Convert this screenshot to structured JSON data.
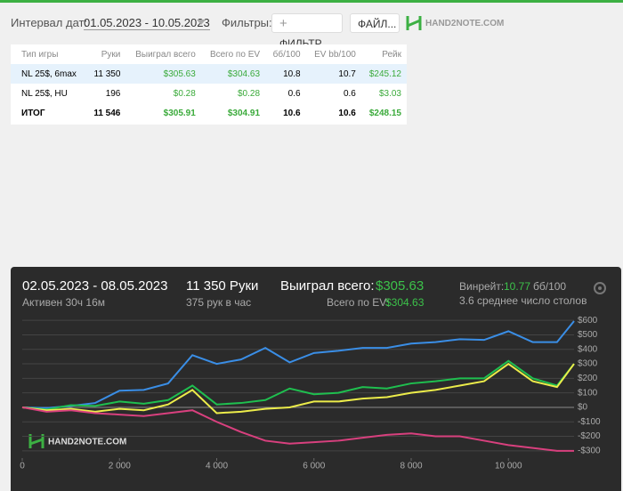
{
  "header": {
    "interval_label": "Интервал дат:",
    "interval_value": "01.05.2023 - 10.05.2023",
    "filters_label": "Фильтры:",
    "filter_button": "ФИЛЬТР...",
    "file_button": "ФАЙЛ...",
    "logo": "HAND2NOTE.COM"
  },
  "table": {
    "columns": [
      "Тип игры",
      "Руки",
      "Выиграл всего",
      "Всего по EV",
      "бб/100",
      "EV bb/100",
      "Рейк"
    ],
    "rows": [
      [
        "NL 25$, 6max",
        "11 350",
        "$305.63",
        "$304.63",
        "10.8",
        "10.7",
        "$245.12"
      ],
      [
        "NL 25$, HU",
        "196",
        "$0.28",
        "$0.28",
        "0.6",
        "0.6",
        "$3.03"
      ],
      [
        "ИТОГ",
        "11 546",
        "$305.91",
        "$304.91",
        "10.6",
        "10.6",
        "$248.15"
      ]
    ]
  },
  "summary": {
    "dates": "02.05.2023 - 08.05.2023",
    "active": "Активен 30ч 16м",
    "hands": "11 350 Руки",
    "hands_per_hour": "375 рук в час",
    "won_label": "Выиграл всего:",
    "won_value": "$305.63",
    "ev_label": "Всего по EV:",
    "ev_value": "$304.63",
    "winrate_label": "Винрейт:",
    "winrate_value": "10.77",
    "winrate_unit": "бб/100",
    "tables": "3.6 среднее число столов",
    "watermark": "HAND2NOTE.COM"
  },
  "chart_data": {
    "type": "line",
    "x": [
      0,
      500,
      1000,
      1500,
      2000,
      2500,
      3000,
      3500,
      4000,
      4500,
      5000,
      5500,
      6000,
      6500,
      7000,
      7500,
      8000,
      8500,
      9000,
      9500,
      10000,
      10500,
      11000,
      11350
    ],
    "series": [
      {
        "color": "#3a8ee6",
        "values": [
          0,
          -5,
          10,
          30,
          115,
          120,
          165,
          360,
          300,
          330,
          410,
          310,
          375,
          390,
          410,
          410,
          440,
          450,
          470,
          465,
          525,
          450,
          450,
          595
        ]
      },
      {
        "color": "#1fbf4f",
        "values": [
          0,
          -15,
          15,
          10,
          40,
          25,
          50,
          150,
          20,
          30,
          50,
          130,
          90,
          100,
          140,
          130,
          165,
          180,
          200,
          200,
          320,
          200,
          150,
          300
        ]
      },
      {
        "color": "#ecec4a",
        "values": [
          0,
          -20,
          -10,
          -30,
          -10,
          -20,
          20,
          120,
          -40,
          -30,
          -10,
          0,
          40,
          40,
          60,
          70,
          100,
          120,
          150,
          180,
          300,
          180,
          140,
          300
        ]
      },
      {
        "color": "#d8407e",
        "values": [
          0,
          -30,
          -20,
          -40,
          -50,
          -60,
          -40,
          -20,
          -100,
          -170,
          -230,
          -250,
          -240,
          -230,
          -210,
          -190,
          -180,
          -200,
          -200,
          -230,
          -260,
          -280,
          -300,
          -300
        ]
      }
    ],
    "xlim": [
      0,
      11350
    ],
    "xticks": [
      0,
      {
        "value": 2000,
        "label": "2 000"
      },
      {
        "value": 4000,
        "label": "4 000"
      },
      {
        "value": 6000,
        "label": "6 000"
      },
      {
        "value": 8000,
        "label": "8 000"
      },
      {
        "value": 10000,
        "label": "10 000"
      }
    ],
    "ylim": [
      -350,
      650
    ],
    "yticks": [
      {
        "value": 600,
        "label": "$600"
      },
      {
        "value": 500,
        "label": "$500"
      },
      {
        "value": 400,
        "label": "$400"
      },
      {
        "value": 300,
        "label": "$300"
      },
      {
        "value": 200,
        "label": "$200"
      },
      {
        "value": 100,
        "label": "$100"
      },
      {
        "value": 0,
        "label": "$0"
      },
      {
        "value": -100,
        "label": "-$100"
      },
      {
        "value": -200,
        "label": "-$200"
      },
      {
        "value": -300,
        "label": "-$300"
      }
    ],
    "grid": true
  }
}
